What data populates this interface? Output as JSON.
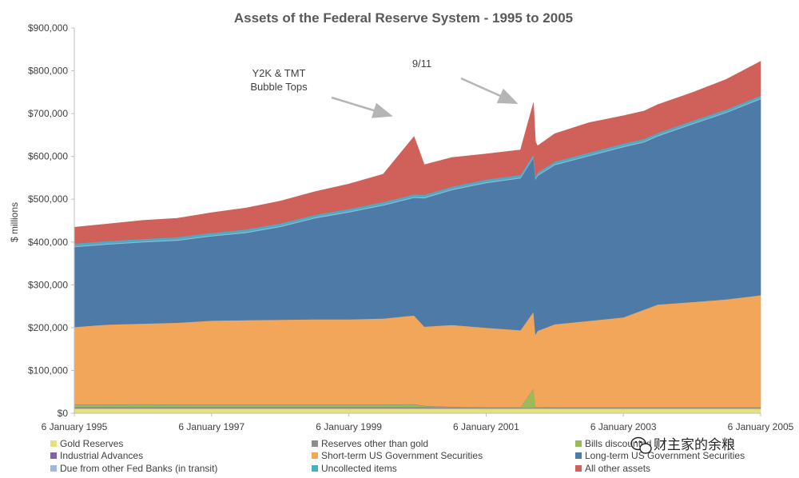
{
  "chart_data": {
    "type": "area",
    "stacked": true,
    "title": "Assets of the Federal Reserve System - 1995 to 2005",
    "xlabel": "",
    "ylabel": "$ millions",
    "ylim": [
      0,
      900000
    ],
    "y_ticks": [
      "$0",
      "$100,000",
      "$200,000",
      "$300,000",
      "$400,000",
      "$500,000",
      "$600,000",
      "$700,000",
      "$800,000",
      "$900,000"
    ],
    "y_tick_values": [
      0,
      100000,
      200000,
      300000,
      400000,
      500000,
      600000,
      700000,
      800000,
      900000
    ],
    "x_ticks": [
      "6 January 1995",
      "6 January 1997",
      "6 January 1999",
      "6 January 2001",
      "6 January 2003",
      "6 January 2005"
    ],
    "x_tick_years": [
      1995.0,
      1997.0,
      1999.0,
      2001.0,
      2003.0,
      2005.0
    ],
    "xlim": [
      1995.0,
      2005.0
    ],
    "x": [
      1995.0,
      1995.5,
      1996.0,
      1996.5,
      1997.0,
      1997.5,
      1998.0,
      1998.5,
      1999.0,
      1999.5,
      1999.95,
      2000.1,
      2000.5,
      2001.0,
      2001.5,
      2001.69,
      2001.72,
      2001.75,
      2002.0,
      2002.5,
      2003.0,
      2003.3,
      2003.5,
      2004.0,
      2004.5,
      2005.0
    ],
    "series": [
      {
        "name": "Gold Reserves",
        "color": "#e6e07a",
        "values": [
          11000,
          11000,
          11000,
          11000,
          11000,
          11000,
          11000,
          11000,
          11000,
          11000,
          11000,
          11000,
          11000,
          11000,
          11000,
          11000,
          11000,
          11000,
          11000,
          11000,
          11000,
          11000,
          11000,
          11000,
          11000,
          11000
        ]
      },
      {
        "name": "Reserves other than gold",
        "color": "#8c8c8c",
        "values": [
          4000,
          4000,
          4000,
          4000,
          4000,
          4000,
          4000,
          4000,
          4000,
          4000,
          4000,
          4000,
          3000,
          2000,
          2000,
          2000,
          2000,
          2000,
          2000,
          2000,
          2000,
          2000,
          2000,
          2000,
          2000,
          2000
        ]
      },
      {
        "name": "Bills discounted",
        "color": "#9bbb59",
        "values": [
          5000,
          5000,
          6000,
          5000,
          5000,
          5000,
          5000,
          5000,
          5000,
          5000,
          6000,
          2000,
          1000,
          500,
          500,
          45000,
          2000,
          1000,
          500,
          500,
          500,
          500,
          500,
          500,
          500,
          500
        ]
      },
      {
        "name": "Industrial Advances",
        "color": "#8064a2",
        "values": [
          500,
          500,
          500,
          500,
          500,
          500,
          500,
          500,
          500,
          500,
          500,
          500,
          500,
          500,
          500,
          500,
          500,
          500,
          500,
          500,
          500,
          500,
          500,
          500,
          500,
          500
        ]
      },
      {
        "name": "Short-term US Government Securities",
        "color": "#f2a65a",
        "values": [
          181000,
          187000,
          188000,
          191000,
          196000,
          197000,
          198000,
          199000,
          199000,
          201000,
          207000,
          185000,
          191000,
          186000,
          180000,
          179000,
          169000,
          178000,
          194000,
          202000,
          210000,
          228000,
          240000,
          246000,
          252000,
          262000
        ]
      },
      {
        "name": "Long-term US Government Securities",
        "color": "#4e7aa8",
        "values": [
          187000,
          187000,
          190000,
          192000,
          197000,
          204000,
          217000,
          236000,
          250000,
          264000,
          275000,
          300000,
          315000,
          338000,
          355000,
          360000,
          362000,
          362000,
          372000,
          385000,
          398000,
          391000,
          393000,
          415000,
          436000,
          458000
        ]
      },
      {
        "name": "Due from other Fed Banks (in transit)",
        "color": "#9db8d9",
        "values": [
          2000,
          2000,
          2000,
          2000,
          2000,
          2000,
          2000,
          2000,
          2000,
          2000,
          2000,
          2000,
          2000,
          2000,
          2000,
          2000,
          2000,
          2000,
          2000,
          2000,
          2000,
          2000,
          2000,
          2000,
          2000,
          2000
        ]
      },
      {
        "name": "Uncollected items",
        "color": "#4bacc6",
        "values": [
          6000,
          6000,
          6000,
          6000,
          6000,
          6000,
          6000,
          6000,
          6000,
          6000,
          6000,
          6000,
          6000,
          6000,
          6000,
          6000,
          6000,
          6000,
          6000,
          6000,
          6000,
          6000,
          6000,
          6000,
          6000,
          6000
        ]
      },
      {
        "name": "All other assets",
        "color": "#d0605a",
        "values": [
          38000,
          40000,
          43000,
          44000,
          47000,
          50000,
          52000,
          54000,
          58000,
          65000,
          135000,
          70000,
          68000,
          60000,
          58000,
          120000,
          80000,
          62000,
          65000,
          70000,
          65000,
          65000,
          66000,
          66000,
          70000,
          80000
        ]
      }
    ],
    "annotations": [
      {
        "text_lines": [
          "Y2K & TMT",
          "Bubble Tops"
        ],
        "target_x": 1999.95,
        "target_y": 660000
      },
      {
        "text_lines": [
          "9/11"
        ],
        "target_x": 2001.69,
        "target_y": 730000
      }
    ],
    "legend_position": "bottom",
    "grid": false
  },
  "watermark": {
    "text": "财主家的余粮",
    "icon": "wechat-icon"
  }
}
